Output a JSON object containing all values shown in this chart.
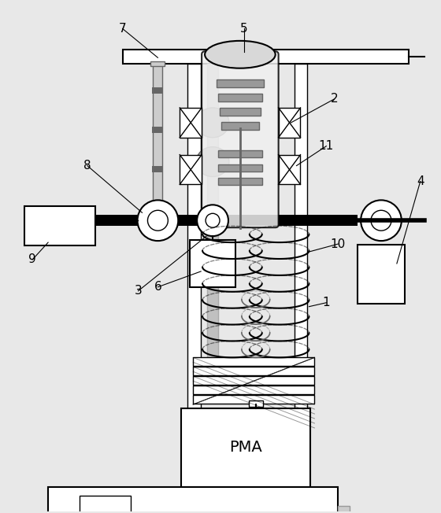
{
  "fig_width": 5.6,
  "fig_height": 6.52,
  "dpi": 100,
  "bg_color": "#e8e8e8"
}
